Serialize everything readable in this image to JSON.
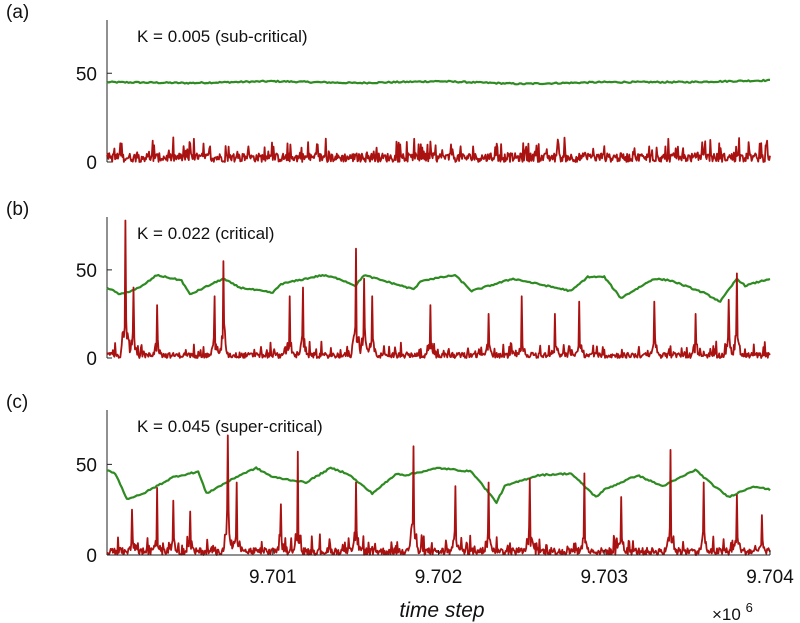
{
  "chart_data": [
    {
      "type": "line",
      "panel_label": "(a)",
      "annotation": "K = 0.005 (sub-critical)",
      "ylim": [
        0,
        80
      ],
      "yticks": [
        0,
        50
      ],
      "xlim": [
        9700000,
        9704000
      ],
      "series": [
        {
          "color": "#2e8b22",
          "style": "smooth",
          "level": 45,
          "noise": 1.5,
          "x": [
            9700000,
            9700500,
            9701000,
            9701500,
            9702000,
            9702500,
            9703000,
            9703500,
            9704000
          ],
          "values": [
            45,
            44.5,
            45.5,
            44.5,
            45.5,
            44,
            45,
            45,
            46
          ]
        },
        {
          "color": "#aa1111",
          "style": "noisy",
          "level": 5,
          "noise": 6,
          "spikes": []
        }
      ]
    },
    {
      "type": "line",
      "panel_label": "(b)",
      "annotation": "K = 0.022 (critical)",
      "ylim": [
        0,
        80
      ],
      "yticks": [
        0,
        50
      ],
      "xlim": [
        9700000,
        9704000
      ],
      "series": [
        {
          "color": "#2e8b22",
          "style": "smooth",
          "x": [
            9700000,
            9700080,
            9700200,
            9700300,
            9700450,
            9700500,
            9700700,
            9700800,
            9701000,
            9701050,
            9701300,
            9701400,
            9701500,
            9701550,
            9701850,
            9701900,
            9702100,
            9702200,
            9702450,
            9702500,
            9702800,
            9702900,
            9703000,
            9703100,
            9703300,
            9703400,
            9703600,
            9703700,
            9703800,
            9703850,
            9704000
          ],
          "values": [
            40,
            36,
            40,
            47,
            44,
            36,
            45,
            40,
            37,
            42,
            47,
            45,
            41,
            47,
            39,
            44,
            47,
            38,
            45,
            44,
            38,
            46,
            46,
            34,
            45,
            44,
            37,
            32,
            45,
            41,
            45
          ]
        },
        {
          "color": "#aa1111",
          "style": "noisy",
          "level": 3,
          "noise": 4,
          "spikes": [
            [
              9700110,
              78
            ],
            [
              9700160,
              40
            ],
            [
              9700300,
              30
            ],
            [
              9700650,
              35
            ],
            [
              9700700,
              55
            ],
            [
              9701100,
              35
            ],
            [
              9701180,
              40
            ],
            [
              9701500,
              62
            ],
            [
              9701550,
              45
            ],
            [
              9701600,
              35
            ],
            [
              9701950,
              30
            ],
            [
              9702300,
              25
            ],
            [
              9702500,
              35
            ],
            [
              9702700,
              25
            ],
            [
              9702850,
              32
            ],
            [
              9703300,
              32
            ],
            [
              9703550,
              25
            ],
            [
              9703800,
              48
            ],
            [
              9703750,
              33
            ]
          ]
        }
      ]
    },
    {
      "type": "line",
      "panel_label": "(c)",
      "annotation": "K = 0.045 (super-critical)",
      "ylim": [
        0,
        80
      ],
      "yticks": [
        0,
        50
      ],
      "xlim": [
        9700000,
        9704000
      ],
      "series": [
        {
          "color": "#2e8b22",
          "style": "smooth",
          "x": [
            9700000,
            9700050,
            9700120,
            9700200,
            9700400,
            9700550,
            9700600,
            9700800,
            9700900,
            9701000,
            9701200,
            9701350,
            9701450,
            9701600,
            9701750,
            9701800,
            9702000,
            9702200,
            9702350,
            9702400,
            9702600,
            9702800,
            9702950,
            9703000,
            9703200,
            9703350,
            9703400,
            9703550,
            9703650,
            9703750,
            9703900,
            9704000
          ],
          "values": [
            47,
            45,
            31,
            33,
            43,
            46,
            34,
            44,
            48,
            43,
            40,
            48,
            45,
            34,
            45,
            44,
            48,
            46,
            29,
            38,
            44,
            45,
            32,
            36,
            44,
            38,
            40,
            47,
            39,
            32,
            38,
            36
          ]
        },
        {
          "color": "#aa1111",
          "style": "noisy",
          "level": 4,
          "noise": 5,
          "spikes": [
            [
              9700150,
              25
            ],
            [
              9700300,
              37
            ],
            [
              9700400,
              30
            ],
            [
              9700500,
              24
            ],
            [
              9700730,
              66
            ],
            [
              9700780,
              40
            ],
            [
              9701050,
              28
            ],
            [
              9701150,
              57
            ],
            [
              9701500,
              40
            ],
            [
              9701850,
              60
            ],
            [
              9702100,
              38
            ],
            [
              9702300,
              40
            ],
            [
              9702550,
              42
            ],
            [
              9702880,
              45
            ],
            [
              9703100,
              32
            ],
            [
              9703400,
              58
            ],
            [
              9703600,
              40
            ],
            [
              9703800,
              33
            ],
            [
              9703950,
              22
            ]
          ]
        }
      ]
    }
  ],
  "xaxis": {
    "label": "time step",
    "ticks": [
      9701000,
      9702000,
      9703000,
      9704000
    ],
    "tick_labels": [
      "9.701",
      "9.702",
      "9.703",
      "9.704"
    ],
    "multiplier_base": "×10",
    "multiplier_exp": "6"
  }
}
